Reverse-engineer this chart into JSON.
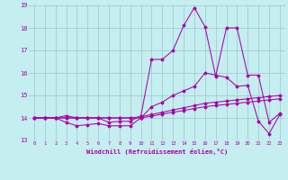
{
  "xlabel": "Windchill (Refroidissement éolien,°C)",
  "bg_color": "#c5eef0",
  "grid_color": "#9ecdd4",
  "line_color": "#aa00aa",
  "xlim": [
    -0.5,
    23.5
  ],
  "ylim": [
    13.0,
    19.0
  ],
  "yticks": [
    13,
    14,
    15,
    16,
    17,
    18,
    19
  ],
  "xticks": [
    0,
    1,
    2,
    3,
    4,
    5,
    6,
    7,
    8,
    9,
    10,
    11,
    12,
    13,
    14,
    15,
    16,
    17,
    18,
    19,
    20,
    21,
    22,
    23
  ],
  "series1_x": [
    0,
    1,
    2,
    3,
    4,
    5,
    6,
    7,
    8,
    9,
    10,
    11,
    12,
    13,
    14,
    15,
    16,
    17,
    18,
    19,
    20,
    21,
    22,
    23
  ],
  "series1_y": [
    14.0,
    14.0,
    14.0,
    14.1,
    14.0,
    14.0,
    14.0,
    13.8,
    13.85,
    13.85,
    14.1,
    16.6,
    16.6,
    17.0,
    18.1,
    18.9,
    18.05,
    15.85,
    18.0,
    18.0,
    15.9,
    15.9,
    13.8,
    14.2
  ],
  "series2_x": [
    0,
    1,
    2,
    3,
    4,
    5,
    6,
    7,
    8,
    9,
    10,
    11,
    12,
    13,
    14,
    15,
    16,
    17,
    18,
    19,
    20,
    21,
    22,
    23
  ],
  "series2_y": [
    14.0,
    14.0,
    14.0,
    13.8,
    13.65,
    13.7,
    13.75,
    13.65,
    13.65,
    13.65,
    14.0,
    14.5,
    14.7,
    15.0,
    15.2,
    15.4,
    16.0,
    15.9,
    15.8,
    15.4,
    15.45,
    13.85,
    13.3,
    14.15
  ],
  "series3_x": [
    0,
    1,
    2,
    3,
    4,
    5,
    6,
    7,
    8,
    9,
    10,
    11,
    12,
    13,
    14,
    15,
    16,
    17,
    18,
    19,
    20,
    21,
    22,
    23
  ],
  "series3_y": [
    14.0,
    14.0,
    14.0,
    14.0,
    14.0,
    14.0,
    14.0,
    14.0,
    14.0,
    14.0,
    14.05,
    14.15,
    14.25,
    14.35,
    14.45,
    14.55,
    14.65,
    14.7,
    14.75,
    14.8,
    14.85,
    14.9,
    14.95,
    15.0
  ],
  "series4_x": [
    0,
    1,
    2,
    3,
    4,
    5,
    6,
    7,
    8,
    9,
    10,
    11,
    12,
    13,
    14,
    15,
    16,
    17,
    18,
    19,
    20,
    21,
    22,
    23
  ],
  "series4_y": [
    14.0,
    14.0,
    14.0,
    14.0,
    14.0,
    14.0,
    14.0,
    14.0,
    14.0,
    14.0,
    14.0,
    14.08,
    14.17,
    14.25,
    14.33,
    14.42,
    14.5,
    14.55,
    14.6,
    14.65,
    14.7,
    14.75,
    14.8,
    14.85
  ]
}
